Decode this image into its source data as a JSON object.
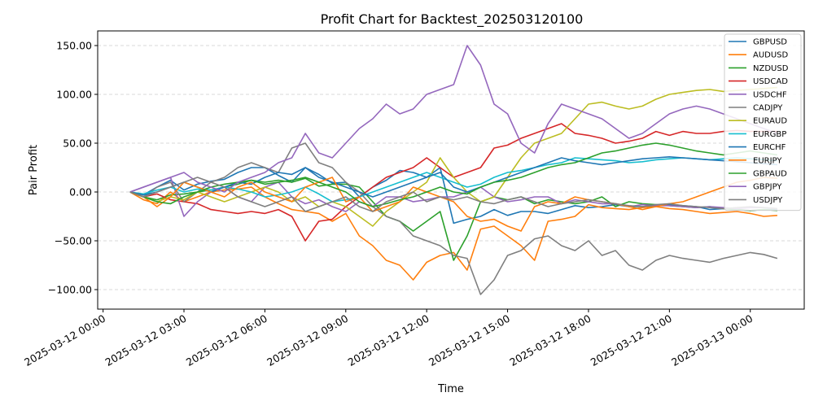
{
  "chart_data": {
    "type": "line",
    "title": "Profit Chart for Backtest_202503120100",
    "xlabel": "Time",
    "ylabel": "Pair Profit",
    "grid": "horizontal dashed",
    "legend_position": "top-right",
    "x_start": "2025-03-12 01:00",
    "x_end": "2025-03-13 01:00",
    "x_step_minutes": 30,
    "xlim": [
      "2025-03-11 23:48",
      "2025-03-13 02:00"
    ],
    "ylim": [
      -120,
      165
    ],
    "x_ticks": [
      "2025-03-12 00:00",
      "2025-03-12 03:00",
      "2025-03-12 06:00",
      "2025-03-12 09:00",
      "2025-03-12 12:00",
      "2025-03-12 15:00",
      "2025-03-12 18:00",
      "2025-03-12 21:00",
      "2025-03-13 00:00"
    ],
    "y_ticks": [
      "−100.00",
      "−50.00",
      "0.00",
      "50.00",
      "100.00",
      "150.00"
    ],
    "y_tick_values": [
      -100,
      -50,
      0,
      50,
      100,
      150
    ],
    "series": [
      {
        "name": "GBPUSD",
        "color": "#1f77b4",
        "values": [
          0,
          -3,
          5,
          12,
          2,
          8,
          11,
          13,
          20,
          25,
          25,
          17,
          10,
          25,
          18,
          9,
          10,
          -5,
          5,
          12,
          22,
          20,
          15,
          25,
          -32,
          -28,
          -25,
          -18,
          -24,
          -20,
          -20,
          -22,
          -18,
          -14,
          -16,
          -15,
          -13,
          -15,
          -15,
          -14,
          -13,
          -14,
          -15,
          -18,
          -17,
          -18,
          -19,
          -18,
          -18
        ]
      },
      {
        "name": "AUDUSD",
        "color": "#ff7f0e",
        "values": [
          0,
          -8,
          -12,
          0,
          -10,
          -5,
          0,
          2,
          3,
          5,
          -5,
          -12,
          -18,
          -20,
          -22,
          -30,
          -22,
          -45,
          -55,
          -70,
          -75,
          -90,
          -72,
          -65,
          -62,
          -80,
          -38,
          -35,
          -45,
          -55,
          -70,
          -30,
          -28,
          -25,
          -13,
          -16,
          -17,
          -18,
          -16,
          -15,
          -17,
          -18,
          -20,
          -22,
          -21,
          -20,
          -22,
          -25,
          -24
        ]
      },
      {
        "name": "NZDUSD",
        "color": "#2ca02c",
        "values": [
          0,
          -5,
          -8,
          -3,
          -2,
          0,
          2,
          5,
          8,
          12,
          10,
          12,
          10,
          14,
          6,
          8,
          8,
          5,
          -10,
          -25,
          -30,
          -40,
          -30,
          -20,
          -70,
          -45,
          -10,
          -5,
          -8,
          -5,
          -12,
          -8,
          -10,
          -12,
          -10,
          -5,
          -15,
          -10,
          -12,
          -13,
          -14,
          -15,
          -16,
          -15,
          -17,
          -18,
          -19,
          -18,
          -19
        ]
      },
      {
        "name": "USDCAD",
        "color": "#d62728",
        "values": [
          0,
          -5,
          -2,
          -8,
          -10,
          -12,
          -18,
          -20,
          -22,
          -20,
          -22,
          -18,
          -25,
          -50,
          -30,
          -28,
          -15,
          -5,
          5,
          15,
          20,
          25,
          35,
          25,
          15,
          20,
          25,
          45,
          48,
          55,
          60,
          65,
          70,
          60,
          58,
          55,
          50,
          52,
          55,
          62,
          58,
          62,
          60,
          60,
          62,
          63,
          62,
          62,
          62
        ]
      },
      {
        "name": "USDCHF",
        "color": "#9467bd",
        "values": [
          0,
          5,
          10,
          15,
          -25,
          -10,
          0,
          5,
          -5,
          -10,
          5,
          10,
          -5,
          -12,
          -8,
          -15,
          -20,
          -10,
          -15,
          -5,
          -5,
          -10,
          -8,
          -5,
          -5,
          0,
          5,
          -5,
          -10,
          -8,
          -5,
          -5,
          -12,
          -8,
          -10,
          -12,
          -12,
          -15,
          -13,
          -14,
          -14,
          -15,
          -16,
          -15,
          -16,
          -17,
          -16,
          -16,
          -17
        ]
      },
      {
        "name": "CADJPY",
        "color": "#7f7f7f",
        "values": [
          0,
          -5,
          5,
          10,
          -10,
          0,
          10,
          15,
          25,
          30,
          25,
          20,
          45,
          50,
          30,
          25,
          10,
          0,
          -15,
          -25,
          -30,
          -45,
          -50,
          -55,
          -65,
          -68,
          -105,
          -90,
          -65,
          -60,
          -48,
          -45,
          -55,
          -60,
          -50,
          -65,
          -60,
          -75,
          -80,
          -70,
          -65,
          -68,
          -70,
          -72,
          -68,
          -65,
          -62,
          -64,
          -68
        ]
      },
      {
        "name": "EURAUD",
        "color": "#bcbd22",
        "values": [
          0,
          -5,
          -10,
          -5,
          -8,
          0,
          -5,
          -10,
          -5,
          0,
          5,
          0,
          -10,
          -5,
          -15,
          -10,
          -15,
          -25,
          -35,
          -20,
          -10,
          0,
          10,
          35,
          15,
          0,
          -10,
          -5,
          15,
          35,
          50,
          55,
          60,
          75,
          90,
          92,
          88,
          85,
          88,
          95,
          100,
          102,
          104,
          105,
          103,
          104,
          105,
          106,
          107
        ]
      },
      {
        "name": "EURGBP",
        "color": "#17becf",
        "values": [
          0,
          -2,
          2,
          5,
          0,
          3,
          2,
          5,
          3,
          0,
          -5,
          -3,
          0,
          5,
          -2,
          -10,
          -8,
          -5,
          0,
          5,
          10,
          15,
          20,
          15,
          10,
          5,
          8,
          15,
          20,
          22,
          25,
          28,
          30,
          35,
          34,
          33,
          32,
          30,
          31,
          33,
          34,
          35,
          34,
          33,
          34,
          35,
          34,
          33,
          32
        ]
      },
      {
        "name": "EURCHF",
        "color": "#1f77b4",
        "values": [
          0,
          -3,
          0,
          5,
          10,
          5,
          0,
          5,
          10,
          8,
          15,
          20,
          18,
          25,
          15,
          10,
          5,
          0,
          -5,
          0,
          5,
          10,
          15,
          20,
          5,
          0,
          5,
          10,
          15,
          20,
          25,
          30,
          35,
          32,
          30,
          28,
          30,
          32,
          34,
          35,
          36,
          35,
          34,
          33,
          32,
          31,
          30,
          29,
          28
        ]
      },
      {
        "name": "EURJPY",
        "color": "#ff7f0e",
        "values": [
          0,
          -5,
          -15,
          -5,
          10,
          5,
          0,
          -5,
          5,
          10,
          0,
          -5,
          -10,
          5,
          10,
          15,
          -10,
          -5,
          -20,
          -15,
          -10,
          5,
          0,
          -5,
          -10,
          -25,
          -30,
          -28,
          -35,
          -40,
          -15,
          -10,
          -12,
          -5,
          -8,
          -10,
          -12,
          -15,
          -18,
          -15,
          -12,
          -10,
          -5,
          0,
          5,
          10,
          12,
          15,
          14
        ]
      },
      {
        "name": "GBPAUD",
        "color": "#2ca02c",
        "values": [
          0,
          -5,
          -10,
          -12,
          -5,
          0,
          5,
          8,
          10,
          12,
          8,
          10,
          12,
          15,
          10,
          5,
          0,
          -10,
          -15,
          -12,
          -8,
          -5,
          0,
          5,
          0,
          -2,
          5,
          10,
          12,
          15,
          20,
          25,
          28,
          30,
          35,
          40,
          42,
          45,
          48,
          50,
          48,
          45,
          42,
          40,
          38,
          40,
          42,
          40,
          38
        ]
      },
      {
        "name": "GBPJPY",
        "color": "#9467bd",
        "values": [
          0,
          5,
          10,
          15,
          20,
          10,
          5,
          0,
          10,
          15,
          20,
          30,
          35,
          60,
          40,
          35,
          50,
          65,
          75,
          90,
          80,
          85,
          100,
          105,
          110,
          150,
          130,
          90,
          80,
          50,
          40,
          70,
          90,
          85,
          80,
          75,
          65,
          55,
          60,
          70,
          80,
          85,
          88,
          85,
          80,
          75,
          70,
          65,
          60
        ]
      },
      {
        "name": "USDJPY",
        "color": "#7f7f7f",
        "values": [
          0,
          -5,
          0,
          5,
          10,
          15,
          10,
          5,
          -5,
          -10,
          -15,
          -10,
          -5,
          -20,
          -15,
          -10,
          -5,
          -15,
          -20,
          -10,
          -5,
          0,
          -10,
          -5,
          -8,
          -5,
          -10,
          -12,
          -8,
          -5,
          -10,
          -15,
          -12,
          -10,
          -8,
          -10,
          -12,
          -14,
          -15,
          -13,
          -12,
          -14,
          -15,
          -16,
          -17,
          -16,
          -15,
          -16,
          -17
        ]
      }
    ]
  }
}
